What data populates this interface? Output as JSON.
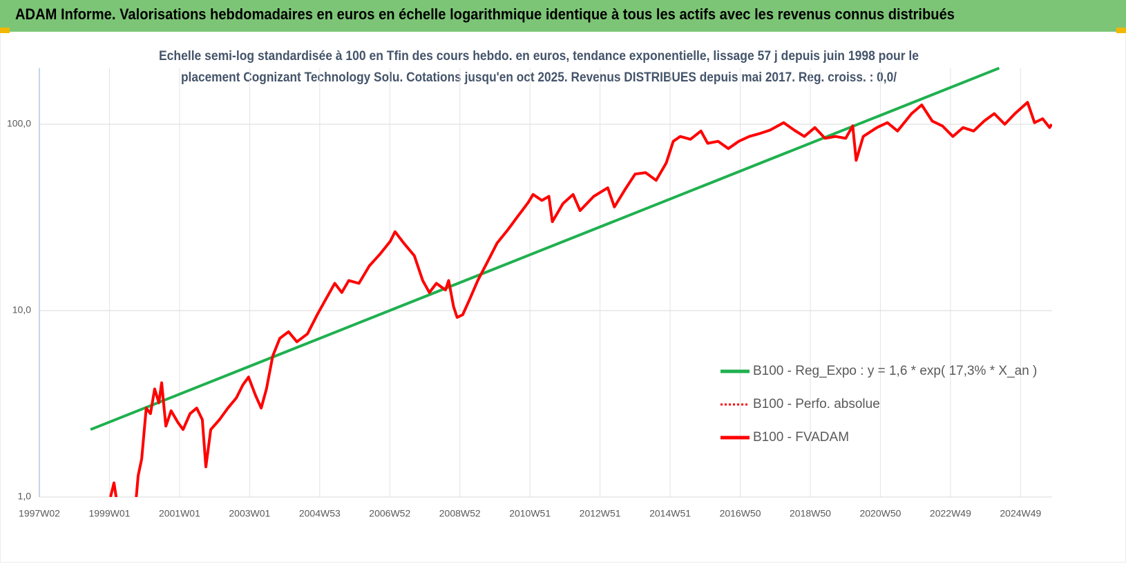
{
  "header": {
    "title": "ADAM Informe. Valorisations hebdomadaires en euros en échelle logarithmique identique à tous les actifs avec les revenus connus distribués"
  },
  "chart_data": {
    "type": "line",
    "subtitle": [
      "Echelle semi-log standardisée à 100 en Tfin des cours hebdo. en euros, tendance exponentielle, lissage 57 j depuis juin 1998 pour le",
      "placement Cognizant Technology Solu. Cotations jusqu'en oct 2025. Revenus DISTRIBUES depuis mai 2017. Reg. croiss. : 0,0/"
    ],
    "log_scale": true,
    "grid": true,
    "legend_position": "right",
    "xlim": [
      1997,
      2025.9
    ],
    "xticks": [
      {
        "value": 1997,
        "label": "1997W02"
      },
      {
        "value": 1999,
        "label": "1999W01"
      },
      {
        "value": 2001,
        "label": "2001W01"
      },
      {
        "value": 2003,
        "label": "2003W01"
      },
      {
        "value": 2005,
        "label": "2004W53"
      },
      {
        "value": 2007,
        "label": "2006W52"
      },
      {
        "value": 2009,
        "label": "2008W52"
      },
      {
        "value": 2011,
        "label": "2010W51"
      },
      {
        "value": 2013,
        "label": "2012W51"
      },
      {
        "value": 2015,
        "label": "2014W51"
      },
      {
        "value": 2017,
        "label": "2016W50"
      },
      {
        "value": 2019,
        "label": "2018W50"
      },
      {
        "value": 2021,
        "label": "2020W50"
      },
      {
        "value": 2023,
        "label": "2022W49"
      },
      {
        "value": 2025,
        "label": "2024W49"
      }
    ],
    "ylim": [
      1,
      200
    ],
    "yticks": [
      {
        "value": 1,
        "label": "1,0"
      },
      {
        "value": 10,
        "label": "10,0"
      },
      {
        "value": 100,
        "label": "100,0"
      }
    ],
    "series": [
      {
        "name": "B100 - Reg_Expo : y = 1,6 * exp( 17,3% *  X_an )",
        "color": "#1fb04f",
        "x": [
          1998.46,
          2024.39
        ],
        "values": [
          2.3,
          200
        ]
      },
      {
        "name": "B100 - Perfo. absolue",
        "color": "#ff0000",
        "dash": "dotted"
      },
      {
        "name": "B100 - FVADAM",
        "color": "#ff0000",
        "x": [
          1999.03,
          1999.13,
          1999.27,
          1999.72,
          1999.82,
          1999.92,
          2000.05,
          2000.17,
          2000.29,
          2000.41,
          2000.49,
          2000.61,
          2000.76,
          2000.96,
          2001.1,
          2001.3,
          2001.49,
          2001.65,
          2001.75,
          2001.89,
          2002.14,
          2002.38,
          2002.62,
          2002.81,
          2002.97,
          2003.17,
          2003.33,
          2003.48,
          2003.66,
          2003.86,
          2004.11,
          2004.35,
          2004.65,
          2004.94,
          2005.14,
          2005.43,
          2005.63,
          2005.83,
          2006.12,
          2006.42,
          2006.71,
          2007.01,
          2007.15,
          2007.4,
          2007.7,
          2007.94,
          2008.13,
          2008.33,
          2008.59,
          2008.68,
          2008.82,
          2008.92,
          2009.08,
          2009.28,
          2009.51,
          2009.77,
          2010.06,
          2010.36,
          2010.65,
          2010.95,
          2011.09,
          2011.34,
          2011.54,
          2011.64,
          2011.94,
          2012.23,
          2012.43,
          2012.82,
          2013.22,
          2013.41,
          2013.71,
          2014.0,
          2014.3,
          2014.6,
          2014.89,
          2015.09,
          2015.29,
          2015.58,
          2015.88,
          2016.07,
          2016.37,
          2016.66,
          2016.96,
          2017.26,
          2017.55,
          2017.85,
          2018.24,
          2018.54,
          2018.83,
          2019.13,
          2019.42,
          2019.72,
          2020.01,
          2020.21,
          2020.31,
          2020.51,
          2020.9,
          2021.2,
          2021.49,
          2021.89,
          2022.18,
          2022.48,
          2022.77,
          2023.07,
          2023.36,
          2023.66,
          2023.96,
          2024.25,
          2024.55,
          2024.84,
          2025.2,
          2025.4,
          2025.63,
          2025.83,
          2025.89
        ],
        "values": [
          1.0,
          1.19,
          0.8,
          0.8,
          1.3,
          1.6,
          3.0,
          2.8,
          3.8,
          3.2,
          4.1,
          2.4,
          2.9,
          2.5,
          2.3,
          2.8,
          3.0,
          2.6,
          1.45,
          2.3,
          2.6,
          3.0,
          3.4,
          4.0,
          4.4,
          3.5,
          3.0,
          3.8,
          5.7,
          7.1,
          7.7,
          6.8,
          7.5,
          9.6,
          11.2,
          14,
          12.5,
          14.5,
          14.0,
          17.4,
          20,
          23.5,
          26.5,
          23,
          19.7,
          14.5,
          12.5,
          14,
          12.9,
          14.5,
          10.5,
          9.2,
          9.5,
          11.5,
          14.5,
          18,
          23,
          27,
          32,
          38,
          42,
          39,
          41,
          30,
          37.5,
          42,
          34.4,
          41,
          45.6,
          36,
          44.5,
          54,
          55,
          50,
          62,
          81,
          86,
          83,
          92,
          79,
          81,
          74,
          81,
          86,
          89,
          93,
          102,
          93,
          86,
          96,
          84,
          86,
          84,
          98,
          64,
          86,
          96,
          102,
          92,
          114,
          127,
          104,
          98,
          86,
          96,
          92,
          104,
          114,
          100,
          114,
          131,
          102,
          107,
          96,
          100
        ]
      }
    ]
  }
}
